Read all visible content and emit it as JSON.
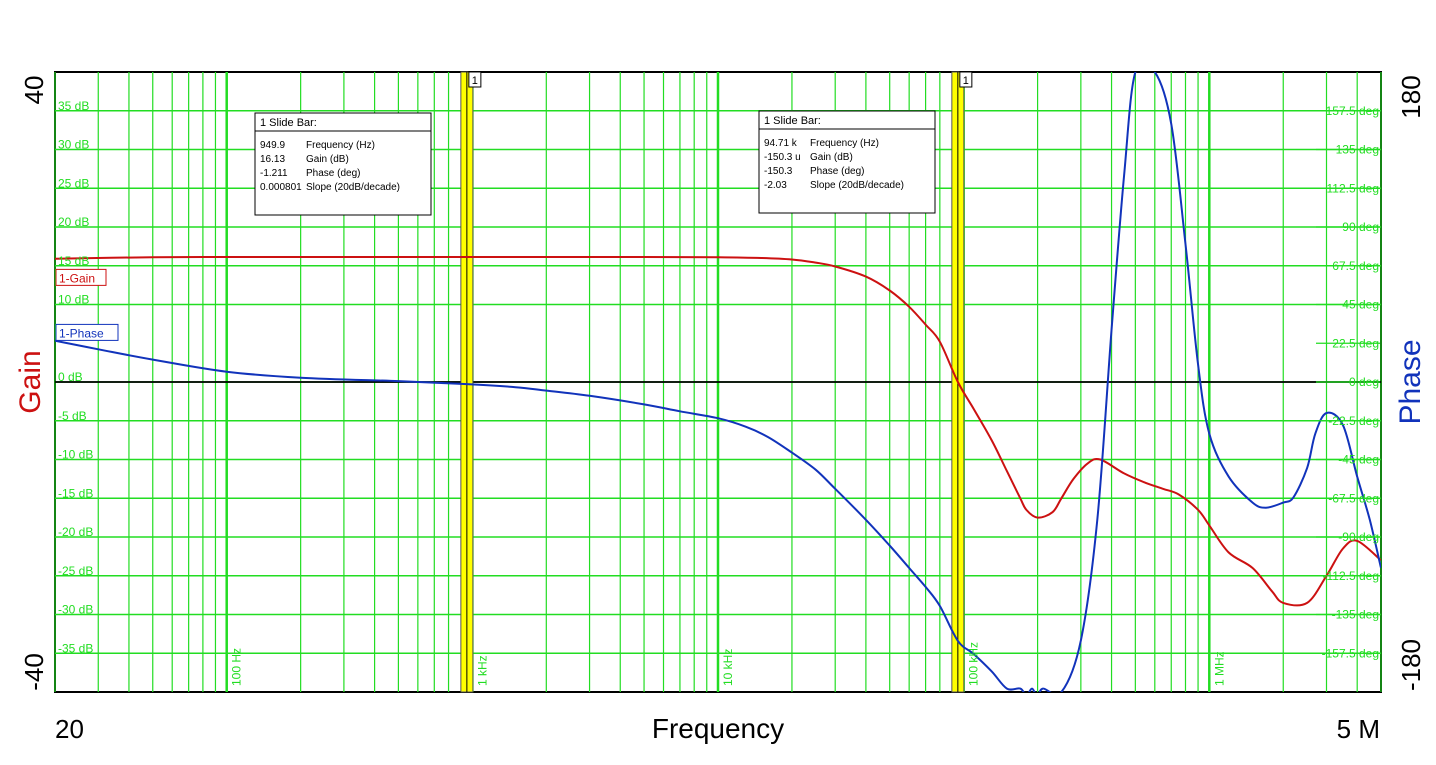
{
  "colors": {
    "grid": "#22dd22",
    "gain": "#cc1111",
    "phase": "#1133bb",
    "cursor": "#ffff00",
    "text_grid": "#22dd22",
    "zero_line": "#000000"
  },
  "axes": {
    "x_label": "Frequency",
    "x_min_label": "20",
    "x_max_label": "5 M",
    "y_left_label": "Gain",
    "y_left_max_label": "40",
    "y_left_min_label": "-40",
    "y_right_label": "Phase",
    "y_right_max_label": "180",
    "y_right_min_label": "-180"
  },
  "chart_data": {
    "type": "line",
    "x_scale": "log",
    "xlim": [
      20,
      5000000
    ],
    "ylim_left": [
      -40,
      40
    ],
    "ylim_right": [
      -180,
      180
    ],
    "grid": true,
    "gain_ticks": [
      "35 dB",
      "30 dB",
      "25 dB",
      "20 dB",
      "15 dB",
      "10 dB",
      "0 dB",
      "-5 dB",
      "-10 dB",
      "-15 dB",
      "-20 dB",
      "-25 dB",
      "-30 dB",
      "-35 dB"
    ],
    "gain_tick_values": [
      35,
      30,
      25,
      20,
      15,
      10,
      0,
      -5,
      -10,
      -15,
      -20,
      -25,
      -30,
      -35
    ],
    "phase_ticks": [
      "157.5 deg",
      "135 deg",
      "112.5 deg",
      "90 deg",
      "67.5 deg",
      "45 deg",
      "22.5 deg",
      "0 deg",
      "-22.5 deg",
      "-45 deg",
      "-67.5 deg",
      "-90 deg",
      "-112.5 deg",
      "-135 deg",
      "-157.5 deg"
    ],
    "phase_tick_values": [
      157.5,
      135,
      112.5,
      90,
      67.5,
      45,
      22.5,
      0,
      -22.5,
      -45,
      -67.5,
      -90,
      -112.5,
      -135,
      -157.5
    ],
    "freq_labels": [
      "100 Hz",
      "1 kHz",
      "10 kHz",
      "100 kHz",
      "1 MHz"
    ],
    "freq_label_values": [
      100,
      1000,
      10000,
      100000,
      1000000
    ],
    "series": [
      {
        "name": "1-Gain",
        "axis": "left",
        "x": [
          20,
          50,
          100,
          200,
          500,
          1000,
          2000,
          5000,
          10000,
          15000,
          20000,
          25000,
          30000,
          40000,
          50000,
          60000,
          70000,
          80000,
          94710,
          110000,
          130000,
          150000,
          170000,
          180000,
          200000,
          230000,
          250000,
          280000,
          320000,
          360000,
          450000,
          550000,
          650000,
          750000,
          900000,
          1000000,
          1200000,
          1500000,
          1800000,
          2000000,
          2500000,
          3000000,
          3500000,
          4000000,
          5000000
        ],
        "y": [
          15.9,
          16.1,
          16.13,
          16.13,
          16.13,
          16.13,
          16.13,
          16.13,
          16.1,
          16.0,
          15.8,
          15.4,
          14.9,
          13.6,
          11.8,
          9.7,
          7.4,
          5.2,
          0,
          -3.5,
          -7.5,
          -11.5,
          -15.0,
          -16.5,
          -17.5,
          -16.8,
          -15,
          -12.5,
          -10.5,
          -10.0,
          -11.8,
          -13,
          -13.8,
          -14.5,
          -16.5,
          -18.5,
          -22,
          -24,
          -27,
          -28.5,
          -28.5,
          -25,
          -21.5,
          -20.5,
          -23
        ]
      },
      {
        "name": "1-Phase",
        "axis": "right",
        "x": [
          20,
          30,
          50,
          100,
          200,
          500,
          949.9,
          1500,
          2000,
          3000,
          5000,
          7000,
          10000,
          13000,
          16000,
          20000,
          25000,
          30000,
          40000,
          50000,
          60000,
          70000,
          80000,
          94710,
          110000,
          130000,
          150000,
          170000,
          180000,
          190000,
          200000,
          210000,
          250000,
          300000,
          350000,
          400000,
          450000,
          500000,
          600000,
          700000,
          800000,
          900000,
          1000000,
          1200000,
          1500000,
          1700000,
          2000000,
          2200000,
          2500000,
          2700000,
          3000000,
          3500000,
          4000000,
          4500000,
          5000000
        ],
        "y": [
          24,
          19,
          13,
          6,
          2.5,
          0.5,
          -1.211,
          -3,
          -5,
          -8,
          -13,
          -17,
          -21,
          -26,
          -32,
          -41,
          -51,
          -62,
          -80,
          -95,
          -108,
          -119,
          -130,
          -150.3,
          -158,
          -168,
          -178,
          -178,
          -182,
          -178,
          -183,
          -178,
          -180,
          -150,
          -80,
          30,
          120,
          180,
          180,
          150,
          80,
          10,
          -30,
          -55,
          -70,
          -73,
          -70,
          -67,
          -50,
          -30,
          -18,
          -25,
          -55,
          -80,
          -108
        ]
      }
    ],
    "cursors": [
      {
        "id": "1",
        "title": "1  Slide Bar:",
        "x": 949.9,
        "rows": [
          {
            "value": "949.9",
            "label": "Frequency (Hz)"
          },
          {
            "value": "16.13",
            "label": "Gain (dB)"
          },
          {
            "value": "-1.211",
            "label": "Phase (deg)"
          },
          {
            "value": "0.000801",
            "label": "Slope (20dB/decade)"
          }
        ]
      },
      {
        "id": "1",
        "title": "1  Slide Bar:",
        "x": 94710,
        "rows": [
          {
            "value": "94.71 k",
            "label": "Frequency (Hz)"
          },
          {
            "value": "-150.3 u",
            "label": "Gain (dB)"
          },
          {
            "value": "-150.3",
            "label": "Phase (deg)"
          },
          {
            "value": "-2.03",
            "label": "Slope (20dB/decade)"
          }
        ]
      }
    ]
  }
}
